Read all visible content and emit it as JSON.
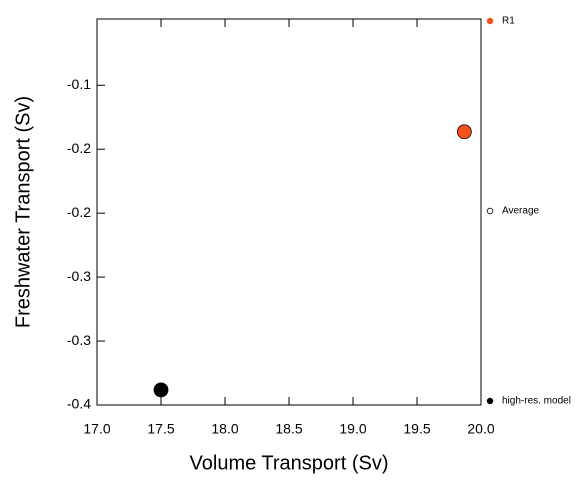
{
  "chart_data": {
    "type": "scatter",
    "x_label": "Volume Transport (Sv)",
    "y_label": "Freshwater Transport (Sv)",
    "xlim": [
      17.0,
      20.0
    ],
    "xticks": [
      {
        "value": 17.0,
        "label": "17.0"
      },
      {
        "value": 17.5,
        "label": "17.5"
      },
      {
        "value": 18.0,
        "label": "18.0"
      },
      {
        "value": 18.5,
        "label": "18.5"
      },
      {
        "value": 19.0,
        "label": "19.0"
      },
      {
        "value": 19.5,
        "label": "19.5"
      },
      {
        "value": 20.0,
        "label": "20.0"
      }
    ],
    "ylim": [
      -0.38,
      -0.048
    ],
    "yticks": [
      {
        "value": -0.38,
        "label": "-0.4"
      },
      {
        "value": -0.325,
        "label": "-0.3"
      },
      {
        "value": -0.27,
        "label": "-0.3"
      },
      {
        "value": -0.215,
        "label": "-0.2"
      },
      {
        "value": -0.16,
        "label": "-0.2"
      },
      {
        "value": -0.105,
        "label": "-0.1"
      }
    ],
    "series": [
      {
        "name": "R1",
        "color": "#f4511e",
        "marker": "filled",
        "x": [
          19.87
        ],
        "y": [
          -0.145
        ]
      },
      {
        "name": "Average",
        "color": "#000000",
        "marker": "open",
        "x": [],
        "y": []
      },
      {
        "name": "high-res. model",
        "color": "#000000",
        "marker": "filled",
        "x": [
          17.5
        ],
        "y": [
          -0.367
        ]
      }
    ]
  }
}
